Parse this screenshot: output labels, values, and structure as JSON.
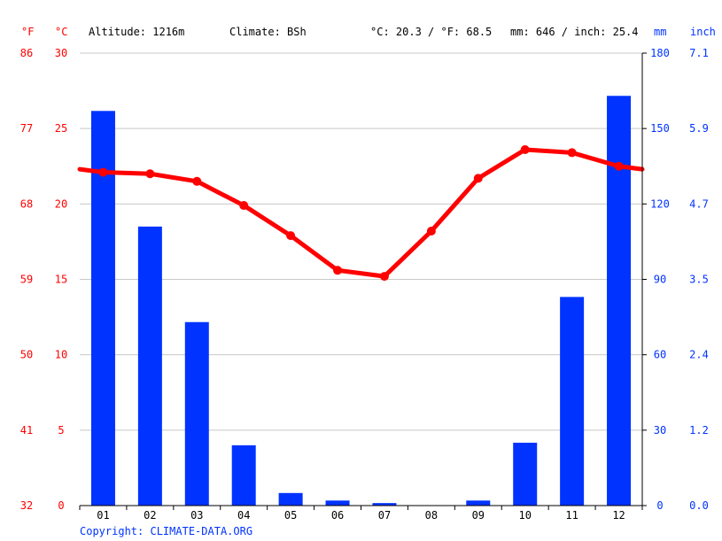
{
  "header": {
    "unit_f": "°F",
    "unit_c": "°C",
    "altitude": "Altitude: 1216m",
    "climate": "Climate: BSh",
    "avg_temp": "°C: 20.3 / °F: 68.5",
    "precip_total": "mm: 646 / inch: 25.4",
    "unit_mm": "mm",
    "unit_inch": "inch"
  },
  "axes": {
    "left_f_ticks": [
      "86",
      "77",
      "68",
      "59",
      "50",
      "41",
      "32"
    ],
    "left_c_ticks": [
      "30",
      "25",
      "20",
      "15",
      "10",
      "5",
      "0"
    ],
    "right_mm_ticks": [
      "180",
      "150",
      "120",
      "90",
      "60",
      "30",
      "0"
    ],
    "right_inch_ticks": [
      "7.1",
      "5.9",
      "4.7",
      "3.5",
      "2.4",
      "1.2",
      "0.0"
    ]
  },
  "footer": {
    "copyright": "Copyright: CLIMATE-DATA.ORG"
  },
  "colors": {
    "temp": "#ff0000",
    "precip": "#0033ff",
    "grid": "#c8c8c8",
    "text": "#000000"
  },
  "chart_data": {
    "type": "bar",
    "categories": [
      "01",
      "02",
      "03",
      "04",
      "05",
      "06",
      "07",
      "08",
      "09",
      "10",
      "11",
      "12"
    ],
    "series": [
      {
        "type": "bar",
        "axis": "right",
        "unit": "mm",
        "values": [
          157,
          111,
          73,
          24,
          5,
          2,
          1,
          0,
          2,
          25,
          83,
          163
        ]
      },
      {
        "type": "line",
        "axis": "left",
        "unit": "°C",
        "values": [
          22.1,
          22.0,
          21.5,
          19.9,
          17.9,
          15.6,
          15.2,
          18.2,
          21.7,
          23.6,
          23.4,
          22.5
        ]
      }
    ],
    "temp_ylim": [
      0,
      30
    ],
    "precip_ylim": [
      0,
      180
    ],
    "grid": true
  }
}
